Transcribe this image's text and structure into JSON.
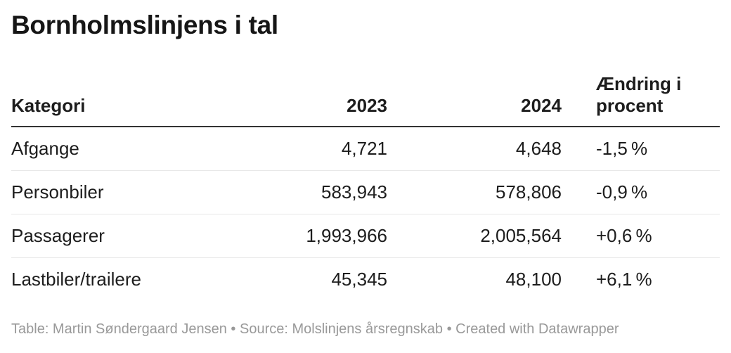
{
  "title": "Bornholmslinjens i tal",
  "table": {
    "headers": [
      "Kategori",
      "2023",
      "2024",
      "Ændring i procent"
    ],
    "rows": [
      [
        "Afgange",
        "4,721",
        "4,648",
        "-1,5 %"
      ],
      [
        "Personbiler",
        "583,943",
        "578,806",
        "-0,9 %"
      ],
      [
        "Passagerer",
        "1,993,966",
        "2,005,564",
        "+0,6 %"
      ],
      [
        "Lastbiler/trailere",
        "45,345",
        "48,100",
        "+6,1 %"
      ]
    ]
  },
  "footer": {
    "attribution": "Table: Martin Søndergaard Jensen",
    "separator": "•",
    "source": "Source: Molslinjens årsregnskab",
    "created": "Created with Datawrapper"
  },
  "colors": {
    "title_text": "#161616",
    "body_text": "#1d1d1d",
    "header_border": "#333333",
    "row_border": "#e8e8e8",
    "footer_text": "#999999",
    "background": "#ffffff"
  },
  "chart_data": {
    "type": "table",
    "title": "Bornholmslinjens i tal",
    "columns": [
      "Kategori",
      "2023",
      "2024",
      "Ændring i procent"
    ],
    "categories": [
      "Afgange",
      "Personbiler",
      "Passagerer",
      "Lastbiler/trailere"
    ],
    "series": [
      {
        "name": "2023",
        "values": [
          4721,
          583943,
          1993966,
          45345
        ]
      },
      {
        "name": "2024",
        "values": [
          4648,
          578806,
          2005564,
          48100
        ]
      },
      {
        "name": "Ændring i procent",
        "values": [
          -1.5,
          -0.9,
          0.6,
          6.1
        ],
        "unit": "%"
      }
    ],
    "layout_hints": {
      "column_alignment": [
        "left",
        "right",
        "right",
        "left"
      ],
      "header_rule": "2px dark",
      "row_rules": "1px light gray between rows, none after last row"
    },
    "footer": "Table: Martin Søndergaard Jensen • Source: Molslinjens årsregnskab • Created with Datawrapper"
  }
}
